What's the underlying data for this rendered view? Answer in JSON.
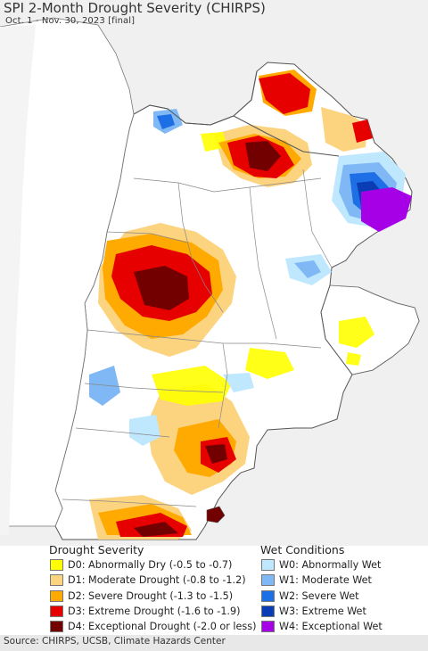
{
  "title": "SPI 2-Month Drought Severity (CHIRPS)",
  "subtitle": "Oct. 1 - Nov. 30, 2023 [final]",
  "legend": {
    "drought_heading": "Drought Severity",
    "wet_heading": "Wet Conditions",
    "drought_items": [
      {
        "label": "D0: Abnormally Dry (-0.5 to -0.7)",
        "color": "#ffff00"
      },
      {
        "label": "D1: Moderate Drought (-0.8 to -1.2)",
        "color": "#fcd37f"
      },
      {
        "label": "D2: Severe Drought (-1.3 to -1.5)",
        "color": "#ffaa00"
      },
      {
        "label": "D3: Extreme Drought (-1.6 to -1.9)",
        "color": "#e60000"
      },
      {
        "label": "D4: Exceptional Drought (-2.0 or less)",
        "color": "#730000"
      }
    ],
    "wet_items": [
      {
        "label": "W0: Abnormally Wet",
        "color": "#bfe8ff"
      },
      {
        "label": "W1: Moderate Wet",
        "color": "#7fb8f5"
      },
      {
        "label": "W2: Severe Wet",
        "color": "#1e6ee6"
      },
      {
        "label": "W3: Extreme Wet",
        "color": "#0a3cb4"
      },
      {
        "label": "W4: Exceptional Wet",
        "color": "#a500e6"
      }
    ]
  },
  "source": "Source: CHIRPS, UCSB, Climate Hazards Center",
  "colors": {
    "land": "#ffffff",
    "outside": "#f0f0f0",
    "border": "#888888"
  }
}
